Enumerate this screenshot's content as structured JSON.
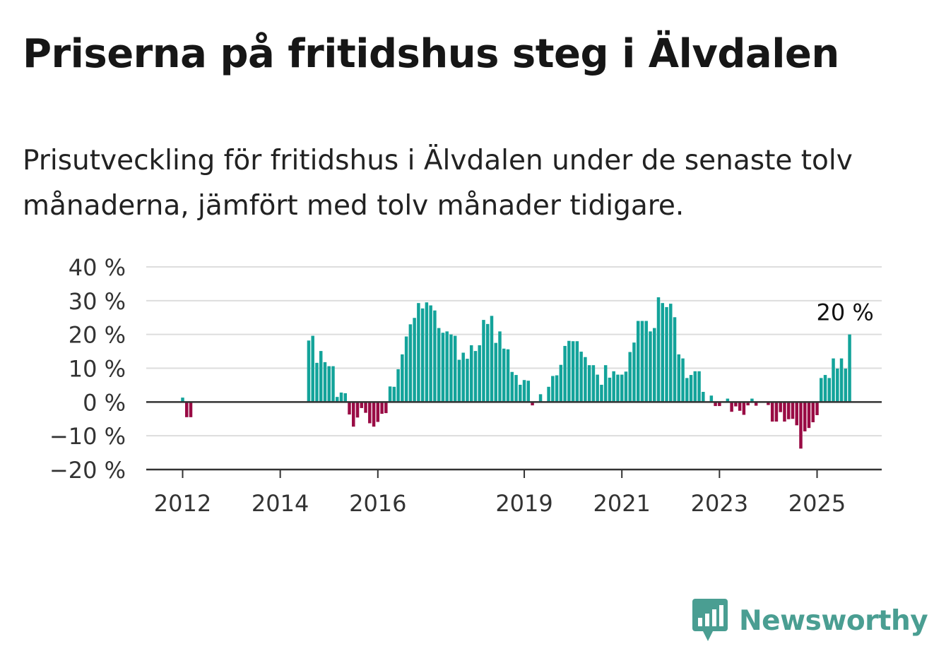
{
  "header": {
    "title": "Priserna på fritidshus steg i Älvdalen",
    "subtitle": "Prisutveckling för fritidshus i Älvdalen under de senaste tolv månaderna, jämfört med tolv månader tidigare."
  },
  "brand": {
    "name": "Newsworthy",
    "logo_icon": "bar-chart-speech-bubble-icon",
    "color": "#4a9e92"
  },
  "chart_data": {
    "type": "bar",
    "title": "",
    "xlabel": "",
    "ylabel": "",
    "ylim": [
      -20,
      40
    ],
    "yticks": [
      40,
      30,
      20,
      10,
      0,
      -10,
      -20
    ],
    "ytick_labels": [
      "40 %",
      "30 %",
      "20 %",
      "10 %",
      "0 %",
      "−10 %",
      "−20 %"
    ],
    "xtick_labels": [
      "2012",
      "2014",
      "2016",
      "2019",
      "2021",
      "2023",
      "2025"
    ],
    "grid": true,
    "colors": {
      "positive": "#13a39a",
      "negative": "#990b44",
      "grid": "#dddddd",
      "axis": "#333333"
    },
    "annotation": {
      "text": "20 %",
      "month": "2025-08",
      "value": 20
    },
    "start_month": "2012-01",
    "values": [
      1.3,
      -4.5,
      -4.5,
      null,
      null,
      null,
      null,
      null,
      null,
      null,
      null,
      null,
      null,
      null,
      null,
      null,
      null,
      null,
      null,
      null,
      null,
      null,
      null,
      null,
      null,
      null,
      null,
      null,
      null,
      null,
      null,
      18.2,
      19.6,
      11.6,
      15.1,
      11.8,
      10.6,
      10.6,
      1.5,
      2.8,
      2.6,
      -3.7,
      -7.3,
      -4.6,
      -1.8,
      -3.2,
      -6.3,
      -7.3,
      -5.9,
      -3.5,
      -3.3,
      4.6,
      4.5,
      9.7,
      14.1,
      19.4,
      23.0,
      24.9,
      29.3,
      27.7,
      29.5,
      28.6,
      27.1,
      21.9,
      20.5,
      20.9,
      20.0,
      19.6,
      12.5,
      14.6,
      12.8,
      16.8,
      15.1,
      16.8,
      24.3,
      23.1,
      25.5,
      17.5,
      20.9,
      15.8,
      15.6,
      8.9,
      8.0,
      5.1,
      6.5,
      6.3,
      -1.0,
      0.2,
      2.3,
      0.1,
      4.5,
      7.7,
      7.9,
      11.0,
      16.6,
      18.1,
      18.0,
      18.0,
      14.9,
      13.3,
      10.9,
      10.9,
      8.1,
      5.1,
      10.9,
      7.2,
      9.1,
      8.1,
      8.1,
      9.0,
      14.8,
      17.6,
      24.0,
      24.0,
      24.0,
      20.9,
      21.9,
      31.0,
      29.3,
      28.1,
      29.1,
      25.1,
      14.1,
      12.9,
      7.1,
      8.0,
      9.1,
      9.1,
      3.0,
      0.1,
      1.9,
      -1.2,
      -1.2,
      0.0,
      1.0,
      -2.9,
      -1.3,
      -2.6,
      -3.8,
      -1.0,
      1.0,
      -1.1,
      0.0,
      0.0,
      -0.9,
      -5.8,
      -5.8,
      -3.0,
      -5.8,
      -5.1,
      -5.0,
      -6.9,
      -13.8,
      -8.7,
      -7.7,
      -6.0,
      -3.9,
      7.1,
      8.0,
      7.1,
      12.9,
      9.9,
      12.9,
      9.9,
      20.0
    ]
  }
}
